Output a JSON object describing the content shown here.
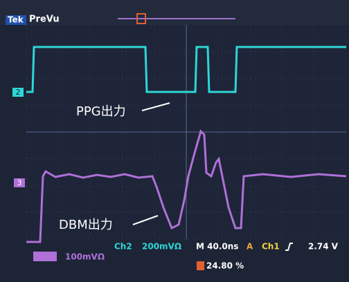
{
  "header": {
    "brand": "Tek",
    "mode": "PreVu"
  },
  "labels": {
    "ppg": "PPG出力",
    "dbm": "DBM出力"
  },
  "markers": {
    "ch2": "2",
    "ch3": "3"
  },
  "status": {
    "ch2": "Ch2",
    "ch2_scale": "200mVΩ",
    "timebase": "M 40.0ns",
    "trigger_source": "A",
    "trigger_channel": "Ch1",
    "trigger_level": "2.74 V",
    "ch3_scale": "100mVΩ",
    "trigger_position": "24.80 %"
  }
}
